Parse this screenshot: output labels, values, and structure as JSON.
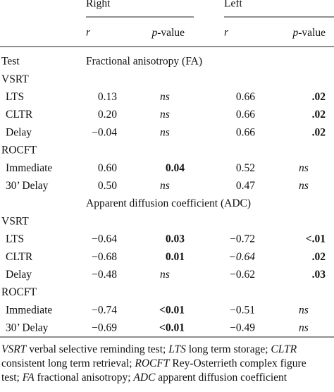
{
  "header": {
    "right": "Right",
    "left": "Left",
    "r": "r",
    "p_italic": "p",
    "p_rest": "-value",
    "test": "Test"
  },
  "sections": [
    {
      "title": "Fractional anisotropy (FA)",
      "groups": [
        {
          "name": "VSRT",
          "rows": [
            {
              "label": "LTS",
              "cells": [
                {
                  "text": "0.13"
                },
                {
                  "text": "ns",
                  "italic": true
                },
                {
                  "text": "0.66"
                },
                {
                  "text": ".02",
                  "bold": true
                }
              ]
            },
            {
              "label": "CLTR",
              "cells": [
                {
                  "text": "0.20"
                },
                {
                  "text": "ns",
                  "italic": true
                },
                {
                  "text": "0.66"
                },
                {
                  "text": ".02",
                  "bold": true
                }
              ]
            },
            {
              "label": "Delay",
              "cells": [
                {
                  "text": "−0.04"
                },
                {
                  "text": "ns",
                  "italic": true
                },
                {
                  "text": "0.66"
                },
                {
                  "text": ".02",
                  "bold": true
                }
              ]
            }
          ]
        },
        {
          "name": "ROCFT",
          "rows": [
            {
              "label": "Immediate",
              "cells": [
                {
                  "text": "0.60"
                },
                {
                  "text": "0.04",
                  "bold": true
                },
                {
                  "text": "0.52"
                },
                {
                  "text": "ns",
                  "italic": true
                }
              ]
            },
            {
              "label": "30’ Delay",
              "cells": [
                {
                  "text": "0.50"
                },
                {
                  "text": "ns",
                  "italic": true
                },
                {
                  "text": "0.47"
                },
                {
                  "text": "ns",
                  "italic": true
                }
              ]
            }
          ]
        }
      ]
    },
    {
      "title": "Apparent diffusion coefficient (ADC)",
      "groups": [
        {
          "name": "VSRT",
          "rows": [
            {
              "label": "LTS",
              "cells": [
                {
                  "text": "−0.64"
                },
                {
                  "text": "0.03",
                  "bold": true
                },
                {
                  "text": "−0.72"
                },
                {
                  "text": "<.01",
                  "bold": true
                }
              ]
            },
            {
              "label": "CLTR",
              "cells": [
                {
                  "text": "−0.68"
                },
                {
                  "text": "0.01",
                  "bold": true
                },
                {
                  "text": "−0.64",
                  "italic": true
                },
                {
                  "text": ".02",
                  "bold": true
                }
              ]
            },
            {
              "label": "Delay",
              "cells": [
                {
                  "text": "−0.48"
                },
                {
                  "text": "ns",
                  "italic": true
                },
                {
                  "text": "−0.62"
                },
                {
                  "text": ".03",
                  "bold": true
                }
              ]
            }
          ]
        },
        {
          "name": "ROCFT",
          "rows": [
            {
              "label": "Immediate",
              "cells": [
                {
                  "text": "−0.74"
                },
                {
                  "text": "<0.01",
                  "bold": true
                },
                {
                  "text": "−0.51"
                },
                {
                  "text": "ns",
                  "italic": true
                }
              ]
            },
            {
              "label": "30’ Delay",
              "cells": [
                {
                  "text": "−0.69"
                },
                {
                  "text": "<0.01",
                  "bold": true
                },
                {
                  "text": "−0.49"
                },
                {
                  "text": "ns",
                  "italic": true
                }
              ]
            }
          ]
        }
      ]
    }
  ],
  "footnote": [
    [
      {
        "text": "VSRT",
        "italic": true
      },
      {
        "text": " verbal selective reminding test; "
      },
      {
        "text": "LTS",
        "italic": true
      },
      {
        "text": " long term storage; "
      },
      {
        "text": "CLTR",
        "italic": true
      }
    ],
    [
      {
        "text": "consistent long term retrieval; "
      },
      {
        "text": "ROCFT",
        "italic": true
      },
      {
        "text": " Rey-Osterrieth complex figure"
      }
    ],
    [
      {
        "text": "test; "
      },
      {
        "text": "FA",
        "italic": true
      },
      {
        "text": " fractional anisotropy; "
      },
      {
        "text": "ADC",
        "italic": true
      },
      {
        "text": " apparent diffusion coefficient"
      }
    ]
  ]
}
